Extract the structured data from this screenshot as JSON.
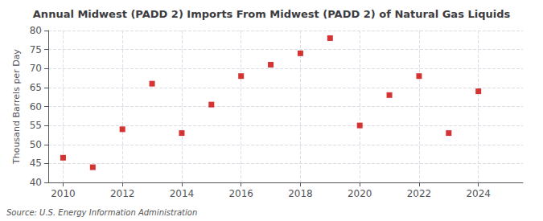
{
  "chart_data": {
    "type": "scatter",
    "title": "Annual Midwest (PADD 2) Imports From Midwest (PADD 2) of Natural Gas Liquids",
    "ylabel": "Thousand Barrels per Day",
    "source": "Source: U.S. Energy Information Administration",
    "x": [
      2010,
      2011,
      2012,
      2013,
      2014,
      2015,
      2016,
      2017,
      2018,
      2019,
      2020,
      2021,
      2022,
      2023,
      2024
    ],
    "values": [
      46.5,
      44.0,
      54.0,
      66.0,
      53.0,
      60.5,
      68.0,
      71.0,
      74.0,
      78.0,
      55.0,
      63.0,
      68.0,
      53.0,
      64.0
    ],
    "color": "#cc0000",
    "marker": "square",
    "xlim": [
      2009.5,
      2025.5
    ],
    "ylim": [
      40,
      80
    ],
    "xticks": [
      2010,
      2012,
      2014,
      2016,
      2018,
      2020,
      2022,
      2024
    ],
    "yticks": [
      40,
      45,
      50,
      55,
      60,
      65,
      70,
      75,
      80
    ],
    "grid": true
  }
}
